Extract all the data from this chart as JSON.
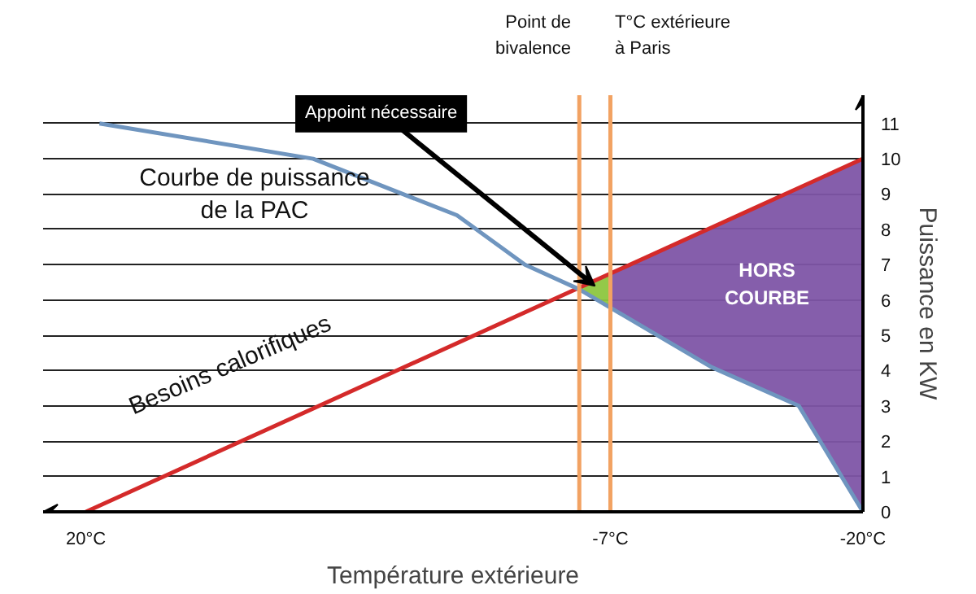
{
  "chart_data": {
    "type": "line",
    "xlabel": "Température extérieure",
    "ylabel": "Puissance en KW",
    "xlim": [
      22.2,
      -20
    ],
    "ylim": [
      0,
      11.8
    ],
    "xticks": [
      {
        "value": 20,
        "label": "20°C"
      },
      {
        "value": -7,
        "label": "-7°C"
      },
      {
        "value": -20,
        "label": "-20°C"
      }
    ],
    "yticks": [
      0,
      1,
      2,
      3,
      4,
      5,
      6,
      7,
      8,
      9,
      10,
      11
    ],
    "grid": "y",
    "marker": "none",
    "line_style": "solid",
    "series": [
      {
        "type": "area",
        "color": "#7e55a6",
        "x": [
          -7,
          -12.2,
          -16.7,
          -20
        ],
        "values": [
          6.75,
          8.05,
          9.18,
          10
        ]
      },
      {
        "type": "area",
        "color": "#8dc63f",
        "x": [
          -5.4,
          -7
        ],
        "values": [
          6.35,
          6.75
        ]
      },
      {
        "color": "#d42a2a",
        "x": [
          20,
          -20
        ],
        "values": [
          0,
          10
        ]
      },
      {
        "color": "#6f95bf",
        "x": [
          19.3,
          8.3,
          0.9,
          -2.6,
          -5.4,
          -12.2,
          -16.7,
          -20
        ],
        "values": [
          11.0,
          10.0,
          8.4,
          7.0,
          6.3,
          4.1,
          3.0,
          0
        ]
      }
    ],
    "ref_lines": [
      {
        "axis": "x",
        "value": -5.4,
        "label": "Point de\nbivalence",
        "color": "#f2a262"
      },
      {
        "axis": "x",
        "value": -7,
        "label": "T°C extérieure\nà Paris",
        "color": "#f2a262"
      }
    ],
    "annotations": [
      "Courbe de puissance\nde la PAC",
      "Besoins calorifiques",
      {
        "text": "Appoint nécessaire",
        "x": -6.2,
        "y": 6.4
      },
      "HORS\nCOURBE"
    ]
  }
}
